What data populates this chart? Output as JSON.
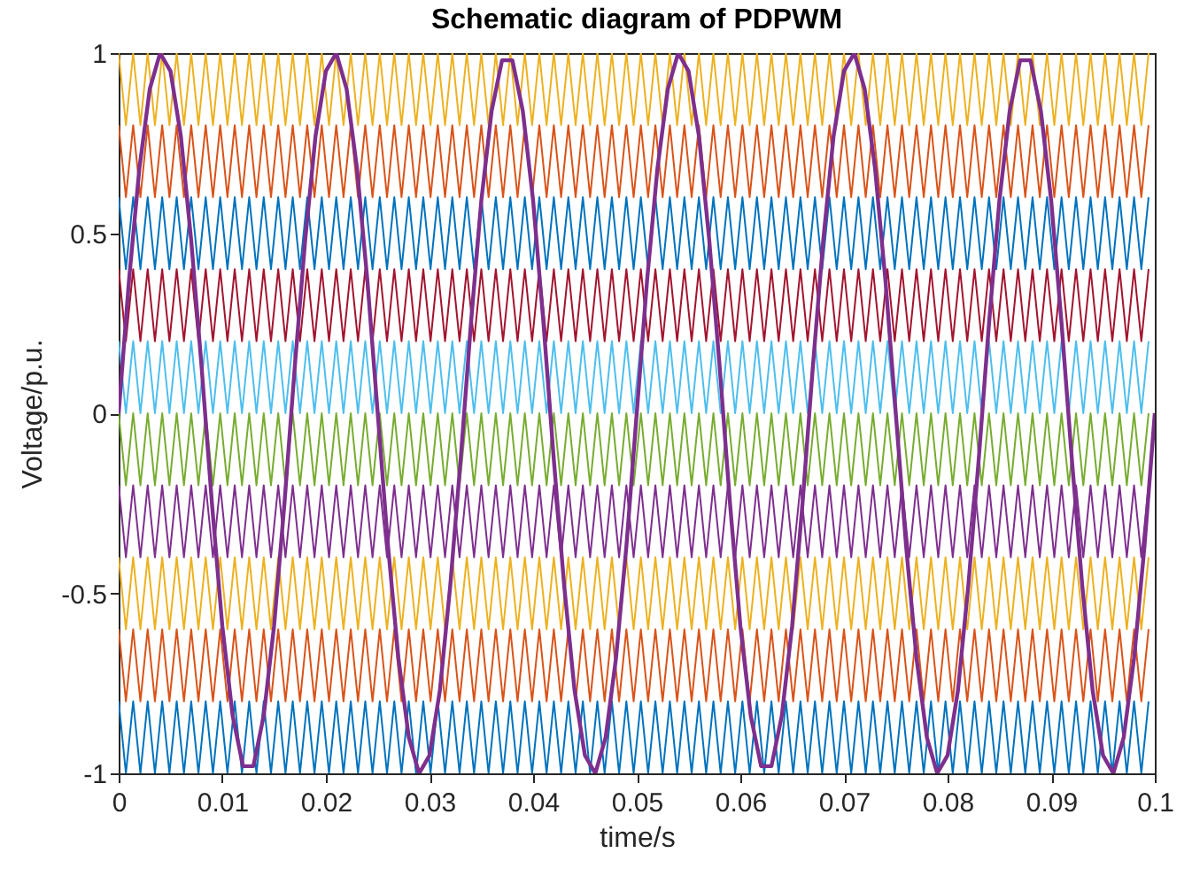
{
  "chart_data": {
    "type": "line",
    "title": "Schematic diagram of PDPWM",
    "xlabel": "time/s",
    "ylabel": "Voltage/p.u.",
    "xlim": [
      0,
      0.1
    ],
    "xticks": [
      0,
      0.01,
      0.02,
      0.03,
      0.04,
      0.05,
      0.06,
      0.07,
      0.08,
      0.09,
      0.1
    ],
    "ylim": [
      -1,
      1
    ],
    "yticks": [
      -1,
      -0.5,
      0,
      0.5,
      1
    ],
    "grid": false,
    "x": [
      0,
      0.0007,
      0.0014,
      0.0021,
      0.0028,
      0.0035,
      0.0042,
      0.0049,
      0.0056,
      0.0063,
      0.007,
      0.0077,
      0.0084,
      0.0091,
      0.0098,
      0.0105,
      0.0112,
      0.0119,
      0.0126,
      0.0133,
      0.014,
      0.0147,
      0.0154,
      0.0161,
      0.0168,
      0.0175,
      0.0182,
      0.0189,
      0.0196,
      0.0203,
      0.021,
      0.0217,
      0.0224,
      0.0231,
      0.0238,
      0.0245,
      0.0252,
      0.0259,
      0.0266,
      0.0273,
      0.028,
      0.0287,
      0.0294,
      0.0301,
      0.0308,
      0.0315,
      0.0322,
      0.0329,
      0.0336,
      0.0343,
      0.035,
      0.0357,
      0.0364,
      0.0371,
      0.0378,
      0.0385,
      0.0392,
      0.0399,
      0.0406,
      0.0413,
      0.042,
      0.0427,
      0.0434,
      0.0441,
      0.0448,
      0.0455,
      0.0462,
      0.0469,
      0.0476,
      0.0483,
      0.049,
      0.0497,
      0.0504,
      0.0511,
      0.0518,
      0.0525,
      0.0532,
      0.0539,
      0.0546,
      0.0553,
      0.056,
      0.0567,
      0.0574,
      0.0581,
      0.0588,
      0.0595,
      0.0602,
      0.0609,
      0.0616,
      0.0623,
      0.063,
      0.0637,
      0.0644,
      0.0651,
      0.0658,
      0.0665,
      0.0672,
      0.0679,
      0.0686,
      0.0693,
      0.07,
      0.0707,
      0.0714,
      0.0721,
      0.0728,
      0.0735,
      0.0742,
      0.0749,
      0.0756,
      0.0763,
      0.077,
      0.0777,
      0.0784,
      0.0791,
      0.0798,
      0.0805,
      0.0812,
      0.0819,
      0.0826,
      0.0833,
      0.084,
      0.0847,
      0.0854,
      0.0861,
      0.0868,
      0.0875,
      0.0882,
      0.0889,
      0.0896,
      0.0903,
      0.091,
      0.0917,
      0.0924,
      0.0931,
      0.0938,
      0.0945,
      0.0952,
      0.0959,
      0.0966,
      0.0973,
      0.098,
      0.0987,
      0.0994
    ],
    "series": [
      {
        "color": "#0072bd",
        "values": [
          -0.8,
          -1,
          -0.8,
          -1,
          -0.8,
          -1,
          -0.8,
          -1,
          -0.8,
          -1,
          -0.8,
          -1,
          -0.8,
          -1,
          -0.8,
          -1,
          -0.8,
          -1,
          -0.8,
          -1,
          -0.8,
          -1,
          -0.8,
          -1,
          -0.8,
          -1,
          -0.8,
          -1,
          -0.8,
          -1,
          -0.8,
          -1,
          -0.8,
          -1,
          -0.8,
          -1,
          -0.8,
          -1,
          -0.8,
          -1,
          -0.8,
          -1,
          -0.8,
          -1,
          -0.8,
          -1,
          -0.8,
          -1,
          -0.8,
          -1,
          -0.8,
          -1,
          -0.8,
          -1,
          -0.8,
          -1,
          -0.8,
          -1,
          -0.8,
          -1,
          -0.8,
          -1,
          -0.8,
          -1,
          -0.8,
          -1,
          -0.8,
          -1,
          -0.8,
          -1,
          -0.8,
          -1,
          -0.8,
          -1,
          -0.8,
          -1,
          -0.8,
          -1,
          -0.8,
          -1,
          -0.8,
          -1,
          -0.8,
          -1,
          -0.8,
          -1,
          -0.8,
          -1,
          -0.8,
          -1,
          -0.8,
          -1,
          -0.8,
          -1,
          -0.8,
          -1,
          -0.8,
          -1,
          -0.8,
          -1,
          -0.8,
          -1,
          -0.8,
          -1,
          -0.8,
          -1,
          -0.8,
          -1,
          -0.8,
          -1,
          -0.8,
          -1,
          -0.8,
          -1,
          -0.8,
          -1,
          -0.8,
          -1,
          -0.8,
          -1,
          -0.8,
          -1,
          -0.8,
          -1,
          -0.8,
          -1,
          -0.8,
          -1,
          -0.8,
          -1,
          -0.8,
          -1,
          -0.8,
          -1,
          -0.8,
          -1,
          -0.8,
          -1,
          -0.8,
          -1,
          -0.8,
          -1,
          -0.8
        ]
      },
      {
        "color": "#d95319",
        "values": [
          -0.6,
          -0.8,
          -0.6,
          -0.8,
          -0.6,
          -0.8,
          -0.6,
          -0.8,
          -0.6,
          -0.8,
          -0.6,
          -0.8,
          -0.6,
          -0.8,
          -0.6,
          -0.8,
          -0.6,
          -0.8,
          -0.6,
          -0.8,
          -0.6,
          -0.8,
          -0.6,
          -0.8,
          -0.6,
          -0.8,
          -0.6,
          -0.8,
          -0.6,
          -0.8,
          -0.6,
          -0.8,
          -0.6,
          -0.8,
          -0.6,
          -0.8,
          -0.6,
          -0.8,
          -0.6,
          -0.8,
          -0.6,
          -0.8,
          -0.6,
          -0.8,
          -0.6,
          -0.8,
          -0.6,
          -0.8,
          -0.6,
          -0.8,
          -0.6,
          -0.8,
          -0.6,
          -0.8,
          -0.6,
          -0.8,
          -0.6,
          -0.8,
          -0.6,
          -0.8,
          -0.6,
          -0.8,
          -0.6,
          -0.8,
          -0.6,
          -0.8,
          -0.6,
          -0.8,
          -0.6,
          -0.8,
          -0.6,
          -0.8,
          -0.6,
          -0.8,
          -0.6,
          -0.8,
          -0.6,
          -0.8,
          -0.6,
          -0.8,
          -0.6,
          -0.8,
          -0.6,
          -0.8,
          -0.6,
          -0.8,
          -0.6,
          -0.8,
          -0.6,
          -0.8,
          -0.6,
          -0.8,
          -0.6,
          -0.8,
          -0.6,
          -0.8,
          -0.6,
          -0.8,
          -0.6,
          -0.8,
          -0.6,
          -0.8,
          -0.6,
          -0.8,
          -0.6,
          -0.8,
          -0.6,
          -0.8,
          -0.6,
          -0.8,
          -0.6,
          -0.8,
          -0.6,
          -0.8,
          -0.6,
          -0.8,
          -0.6,
          -0.8,
          -0.6,
          -0.8,
          -0.6,
          -0.8,
          -0.6,
          -0.8,
          -0.6,
          -0.8,
          -0.6,
          -0.8,
          -0.6,
          -0.8,
          -0.6,
          -0.8,
          -0.6,
          -0.8,
          -0.6,
          -0.8,
          -0.6,
          -0.8,
          -0.6,
          -0.8,
          -0.6,
          -0.8,
          -0.6
        ]
      },
      {
        "color": "#edb120",
        "values": [
          -0.4,
          -0.6,
          -0.4,
          -0.6,
          -0.4,
          -0.6,
          -0.4,
          -0.6,
          -0.4,
          -0.6,
          -0.4,
          -0.6,
          -0.4,
          -0.6,
          -0.4,
          -0.6,
          -0.4,
          -0.6,
          -0.4,
          -0.6,
          -0.4,
          -0.6,
          -0.4,
          -0.6,
          -0.4,
          -0.6,
          -0.4,
          -0.6,
          -0.4,
          -0.6,
          -0.4,
          -0.6,
          -0.4,
          -0.6,
          -0.4,
          -0.6,
          -0.4,
          -0.6,
          -0.4,
          -0.6,
          -0.4,
          -0.6,
          -0.4,
          -0.6,
          -0.4,
          -0.6,
          -0.4,
          -0.6,
          -0.4,
          -0.6,
          -0.4,
          -0.6,
          -0.4,
          -0.6,
          -0.4,
          -0.6,
          -0.4,
          -0.6,
          -0.4,
          -0.6,
          -0.4,
          -0.6,
          -0.4,
          -0.6,
          -0.4,
          -0.6,
          -0.4,
          -0.6,
          -0.4,
          -0.6,
          -0.4,
          -0.6,
          -0.4,
          -0.6,
          -0.4,
          -0.6,
          -0.4,
          -0.6,
          -0.4,
          -0.6,
          -0.4,
          -0.6,
          -0.4,
          -0.6,
          -0.4,
          -0.6,
          -0.4,
          -0.6,
          -0.4,
          -0.6,
          -0.4,
          -0.6,
          -0.4,
          -0.6,
          -0.4,
          -0.6,
          -0.4,
          -0.6,
          -0.4,
          -0.6,
          -0.4,
          -0.6,
          -0.4,
          -0.6,
          -0.4,
          -0.6,
          -0.4,
          -0.6,
          -0.4,
          -0.6,
          -0.4,
          -0.6,
          -0.4,
          -0.6,
          -0.4,
          -0.6,
          -0.4,
          -0.6,
          -0.4,
          -0.6,
          -0.4,
          -0.6,
          -0.4,
          -0.6,
          -0.4,
          -0.6,
          -0.4,
          -0.6,
          -0.4,
          -0.6,
          -0.4,
          -0.6,
          -0.4,
          -0.6,
          -0.4,
          -0.6,
          -0.4,
          -0.6,
          -0.4,
          -0.6,
          -0.4,
          -0.6,
          -0.4
        ]
      },
      {
        "color": "#7e2f8e",
        "values": [
          -0.2,
          -0.4,
          -0.2,
          -0.4,
          -0.2,
          -0.4,
          -0.2,
          -0.4,
          -0.2,
          -0.4,
          -0.2,
          -0.4,
          -0.2,
          -0.4,
          -0.2,
          -0.4,
          -0.2,
          -0.4,
          -0.2,
          -0.4,
          -0.2,
          -0.4,
          -0.2,
          -0.4,
          -0.2,
          -0.4,
          -0.2,
          -0.4,
          -0.2,
          -0.4,
          -0.2,
          -0.4,
          -0.2,
          -0.4,
          -0.2,
          -0.4,
          -0.2,
          -0.4,
          -0.2,
          -0.4,
          -0.2,
          -0.4,
          -0.2,
          -0.4,
          -0.2,
          -0.4,
          -0.2,
          -0.4,
          -0.2,
          -0.4,
          -0.2,
          -0.4,
          -0.2,
          -0.4,
          -0.2,
          -0.4,
          -0.2,
          -0.4,
          -0.2,
          -0.4,
          -0.2,
          -0.4,
          -0.2,
          -0.4,
          -0.2,
          -0.4,
          -0.2,
          -0.4,
          -0.2,
          -0.4,
          -0.2,
          -0.4,
          -0.2,
          -0.4,
          -0.2,
          -0.4,
          -0.2,
          -0.4,
          -0.2,
          -0.4,
          -0.2,
          -0.4,
          -0.2,
          -0.4,
          -0.2,
          -0.4,
          -0.2,
          -0.4,
          -0.2,
          -0.4,
          -0.2,
          -0.4,
          -0.2,
          -0.4,
          -0.2,
          -0.4,
          -0.2,
          -0.4,
          -0.2,
          -0.4,
          -0.2,
          -0.4,
          -0.2,
          -0.4,
          -0.2,
          -0.4,
          -0.2,
          -0.4,
          -0.2,
          -0.4,
          -0.2,
          -0.4,
          -0.2,
          -0.4,
          -0.2,
          -0.4,
          -0.2,
          -0.4,
          -0.2,
          -0.4,
          -0.2,
          -0.4,
          -0.2,
          -0.4,
          -0.2,
          -0.4,
          -0.2,
          -0.4,
          -0.2,
          -0.4,
          -0.2,
          -0.4,
          -0.2,
          -0.4,
          -0.2,
          -0.4,
          -0.2,
          -0.4,
          -0.2,
          -0.4,
          -0.2,
          -0.4,
          -0.2
        ]
      },
      {
        "color": "#77ac30",
        "values": [
          0,
          -0.2,
          0,
          -0.2,
          0,
          -0.2,
          0,
          -0.2,
          0,
          -0.2,
          0,
          -0.2,
          0,
          -0.2,
          0,
          -0.2,
          0,
          -0.2,
          0,
          -0.2,
          0,
          -0.2,
          0,
          -0.2,
          0,
          -0.2,
          0,
          -0.2,
          0,
          -0.2,
          0,
          -0.2,
          0,
          -0.2,
          0,
          -0.2,
          0,
          -0.2,
          0,
          -0.2,
          0,
          -0.2,
          0,
          -0.2,
          0,
          -0.2,
          0,
          -0.2,
          0,
          -0.2,
          0,
          -0.2,
          0,
          -0.2,
          0,
          -0.2,
          0,
          -0.2,
          0,
          -0.2,
          0,
          -0.2,
          0,
          -0.2,
          0,
          -0.2,
          0,
          -0.2,
          0,
          -0.2,
          0,
          -0.2,
          0,
          -0.2,
          0,
          -0.2,
          0,
          -0.2,
          0,
          -0.2,
          0,
          -0.2,
          0,
          -0.2,
          0,
          -0.2,
          0,
          -0.2,
          0,
          -0.2,
          0,
          -0.2,
          0,
          -0.2,
          0,
          -0.2,
          0,
          -0.2,
          0,
          -0.2,
          0,
          -0.2,
          0,
          -0.2,
          0,
          -0.2,
          0,
          -0.2,
          0,
          -0.2,
          0,
          -0.2,
          0,
          -0.2,
          0,
          -0.2,
          0,
          -0.2,
          0,
          -0.2,
          0,
          -0.2,
          0,
          -0.2,
          0,
          -0.2,
          0,
          -0.2,
          0,
          -0.2,
          0,
          -0.2,
          0,
          -0.2,
          0,
          -0.2,
          0,
          -0.2,
          0,
          -0.2,
          0,
          -0.2,
          0
        ]
      },
      {
        "color": "#4dbeee",
        "values": [
          0.2,
          0,
          0.2,
          0,
          0.2,
          0,
          0.2,
          0,
          0.2,
          0,
          0.2,
          0,
          0.2,
          0,
          0.2,
          0,
          0.2,
          0,
          0.2,
          0,
          0.2,
          0,
          0.2,
          0,
          0.2,
          0,
          0.2,
          0,
          0.2,
          0,
          0.2,
          0,
          0.2,
          0,
          0.2,
          0,
          0.2,
          0,
          0.2,
          0,
          0.2,
          0,
          0.2,
          0,
          0.2,
          0,
          0.2,
          0,
          0.2,
          0,
          0.2,
          0,
          0.2,
          0,
          0.2,
          0,
          0.2,
          0,
          0.2,
          0,
          0.2,
          0,
          0.2,
          0,
          0.2,
          0,
          0.2,
          0,
          0.2,
          0,
          0.2,
          0,
          0.2,
          0,
          0.2,
          0,
          0.2,
          0,
          0.2,
          0,
          0.2,
          0,
          0.2,
          0,
          0.2,
          0,
          0.2,
          0,
          0.2,
          0,
          0.2,
          0,
          0.2,
          0,
          0.2,
          0,
          0.2,
          0,
          0.2,
          0,
          0.2,
          0,
          0.2,
          0,
          0.2,
          0,
          0.2,
          0,
          0.2,
          0,
          0.2,
          0,
          0.2,
          0,
          0.2,
          0,
          0.2,
          0,
          0.2,
          0,
          0.2,
          0,
          0.2,
          0,
          0.2,
          0,
          0.2,
          0,
          0.2,
          0,
          0.2,
          0,
          0.2,
          0,
          0.2,
          0,
          0.2,
          0,
          0.2,
          0,
          0.2,
          0,
          0.2
        ]
      },
      {
        "color": "#a2142f",
        "values": [
          0.4,
          0.2,
          0.4,
          0.2,
          0.4,
          0.2,
          0.4,
          0.2,
          0.4,
          0.2,
          0.4,
          0.2,
          0.4,
          0.2,
          0.4,
          0.2,
          0.4,
          0.2,
          0.4,
          0.2,
          0.4,
          0.2,
          0.4,
          0.2,
          0.4,
          0.2,
          0.4,
          0.2,
          0.4,
          0.2,
          0.4,
          0.2,
          0.4,
          0.2,
          0.4,
          0.2,
          0.4,
          0.2,
          0.4,
          0.2,
          0.4,
          0.2,
          0.4,
          0.2,
          0.4,
          0.2,
          0.4,
          0.2,
          0.4,
          0.2,
          0.4,
          0.2,
          0.4,
          0.2,
          0.4,
          0.2,
          0.4,
          0.2,
          0.4,
          0.2,
          0.4,
          0.2,
          0.4,
          0.2,
          0.4,
          0.2,
          0.4,
          0.2,
          0.4,
          0.2,
          0.4,
          0.2,
          0.4,
          0.2,
          0.4,
          0.2,
          0.4,
          0.2,
          0.4,
          0.2,
          0.4,
          0.2,
          0.4,
          0.2,
          0.4,
          0.2,
          0.4,
          0.2,
          0.4,
          0.2,
          0.4,
          0.2,
          0.4,
          0.2,
          0.4,
          0.2,
          0.4,
          0.2,
          0.4,
          0.2,
          0.4,
          0.2,
          0.4,
          0.2,
          0.4,
          0.2,
          0.4,
          0.2,
          0.4,
          0.2,
          0.4,
          0.2,
          0.4,
          0.2,
          0.4,
          0.2,
          0.4,
          0.2,
          0.4,
          0.2,
          0.4,
          0.2,
          0.4,
          0.2,
          0.4,
          0.2,
          0.4,
          0.2,
          0.4,
          0.2,
          0.4,
          0.2,
          0.4,
          0.2,
          0.4,
          0.2,
          0.4,
          0.2,
          0.4,
          0.2,
          0.4,
          0.2,
          0.4
        ]
      },
      {
        "color": "#0072bd",
        "values": [
          0.6,
          0.4,
          0.6,
          0.4,
          0.6,
          0.4,
          0.6,
          0.4,
          0.6,
          0.4,
          0.6,
          0.4,
          0.6,
          0.4,
          0.6,
          0.4,
          0.6,
          0.4,
          0.6,
          0.4,
          0.6,
          0.4,
          0.6,
          0.4,
          0.6,
          0.4,
          0.6,
          0.4,
          0.6,
          0.4,
          0.6,
          0.4,
          0.6,
          0.4,
          0.6,
          0.4,
          0.6,
          0.4,
          0.6,
          0.4,
          0.6,
          0.4,
          0.6,
          0.4,
          0.6,
          0.4,
          0.6,
          0.4,
          0.6,
          0.4,
          0.6,
          0.4,
          0.6,
          0.4,
          0.6,
          0.4,
          0.6,
          0.4,
          0.6,
          0.4,
          0.6,
          0.4,
          0.6,
          0.4,
          0.6,
          0.4,
          0.6,
          0.4,
          0.6,
          0.4,
          0.6,
          0.4,
          0.6,
          0.4,
          0.6,
          0.4,
          0.6,
          0.4,
          0.6,
          0.4,
          0.6,
          0.4,
          0.6,
          0.4,
          0.6,
          0.4,
          0.6,
          0.4,
          0.6,
          0.4,
          0.6,
          0.4,
          0.6,
          0.4,
          0.6,
          0.4,
          0.6,
          0.4,
          0.6,
          0.4,
          0.6,
          0.4,
          0.6,
          0.4,
          0.6,
          0.4,
          0.6,
          0.4,
          0.6,
          0.4,
          0.6,
          0.4,
          0.6,
          0.4,
          0.6,
          0.4,
          0.6,
          0.4,
          0.6,
          0.4,
          0.6,
          0.4,
          0.6,
          0.4,
          0.6,
          0.4,
          0.6,
          0.4,
          0.6,
          0.4,
          0.6,
          0.4,
          0.6,
          0.4,
          0.6,
          0.4,
          0.6,
          0.4,
          0.6,
          0.4,
          0.6,
          0.4,
          0.6
        ]
      },
      {
        "color": "#d95319",
        "values": [
          0.8,
          0.6,
          0.8,
          0.6,
          0.8,
          0.6,
          0.8,
          0.6,
          0.8,
          0.6,
          0.8,
          0.6,
          0.8,
          0.6,
          0.8,
          0.6,
          0.8,
          0.6,
          0.8,
          0.6,
          0.8,
          0.6,
          0.8,
          0.6,
          0.8,
          0.6,
          0.8,
          0.6,
          0.8,
          0.6,
          0.8,
          0.6,
          0.8,
          0.6,
          0.8,
          0.6,
          0.8,
          0.6,
          0.8,
          0.6,
          0.8,
          0.6,
          0.8,
          0.6,
          0.8,
          0.6,
          0.8,
          0.6,
          0.8,
          0.6,
          0.8,
          0.6,
          0.8,
          0.6,
          0.8,
          0.6,
          0.8,
          0.6,
          0.8,
          0.6,
          0.8,
          0.6,
          0.8,
          0.6,
          0.8,
          0.6,
          0.8,
          0.6,
          0.8,
          0.6,
          0.8,
          0.6,
          0.8,
          0.6,
          0.8,
          0.6,
          0.8,
          0.6,
          0.8,
          0.6,
          0.8,
          0.6,
          0.8,
          0.6,
          0.8,
          0.6,
          0.8,
          0.6,
          0.8,
          0.6,
          0.8,
          0.6,
          0.8,
          0.6,
          0.8,
          0.6,
          0.8,
          0.6,
          0.8,
          0.6,
          0.8,
          0.6,
          0.8,
          0.6,
          0.8,
          0.6,
          0.8,
          0.6,
          0.8,
          0.6,
          0.8,
          0.6,
          0.8,
          0.6,
          0.8,
          0.6,
          0.8,
          0.6,
          0.8,
          0.6,
          0.8,
          0.6,
          0.8,
          0.6,
          0.8,
          0.6,
          0.8,
          0.6,
          0.8,
          0.6,
          0.8,
          0.6,
          0.8,
          0.6,
          0.8,
          0.6,
          0.8,
          0.6,
          0.8,
          0.6,
          0.8,
          0.6,
          0.8
        ]
      },
      {
        "color": "#edb120",
        "values": [
          1,
          0.8,
          1,
          0.8,
          1,
          0.8,
          1,
          0.8,
          1,
          0.8,
          1,
          0.8,
          1,
          0.8,
          1,
          0.8,
          1,
          0.8,
          1,
          0.8,
          1,
          0.8,
          1,
          0.8,
          1,
          0.8,
          1,
          0.8,
          1,
          0.8,
          1,
          0.8,
          1,
          0.8,
          1,
          0.8,
          1,
          0.8,
          1,
          0.8,
          1,
          0.8,
          1,
          0.8,
          1,
          0.8,
          1,
          0.8,
          1,
          0.8,
          1,
          0.8,
          1,
          0.8,
          1,
          0.8,
          1,
          0.8,
          1,
          0.8,
          1,
          0.8,
          1,
          0.8,
          1,
          0.8,
          1,
          0.8,
          1,
          0.8,
          1,
          0.8,
          1,
          0.8,
          1,
          0.8,
          1,
          0.8,
          1,
          0.8,
          1,
          0.8,
          1,
          0.8,
          1,
          0.8,
          1,
          0.8,
          1,
          0.8,
          1,
          0.8,
          1,
          0.8,
          1,
          0.8,
          1,
          0.8,
          1,
          0.8,
          1,
          0.8,
          1,
          0.8,
          1,
          0.8,
          1,
          0.8,
          1,
          0.8,
          1,
          0.8,
          1,
          0.8,
          1,
          0.8,
          1,
          0.8,
          1,
          0.8,
          1,
          0.8,
          1,
          0.8,
          1,
          0.8,
          1,
          0.8,
          1,
          0.8,
          1,
          0.8,
          1,
          0.8,
          1,
          0.8,
          1,
          0.8,
          1,
          0.8,
          1,
          0.8,
          1
        ]
      },
      {
        "color": "#7e2f8e",
        "x": [
          0,
          0.001,
          0.002,
          0.003,
          0.004,
          0.005,
          0.006,
          0.007,
          0.008,
          0.009,
          0.01,
          0.011,
          0.012,
          0.013,
          0.014,
          0.015,
          0.016,
          0.017,
          0.018,
          0.019,
          0.02,
          0.021,
          0.022,
          0.023,
          0.024,
          0.025,
          0.026,
          0.027,
          0.028,
          0.029,
          0.03,
          0.031,
          0.032,
          0.033,
          0.034,
          0.035,
          0.036,
          0.037,
          0.038,
          0.039,
          0.04,
          0.041,
          0.042,
          0.043,
          0.044,
          0.045,
          0.046,
          0.047,
          0.048,
          0.049,
          0.05,
          0.051,
          0.052,
          0.053,
          0.054,
          0.055,
          0.056,
          0.057,
          0.058,
          0.059,
          0.06,
          0.061,
          0.062,
          0.063,
          0.064,
          0.065,
          0.066,
          0.067,
          0.068,
          0.069,
          0.07,
          0.071,
          0.072,
          0.073,
          0.074,
          0.075,
          0.076,
          0.077,
          0.078,
          0.079,
          0.08,
          0.081,
          0.082,
          0.083,
          0.084,
          0.085,
          0.086,
          0.087,
          0.088,
          0.089,
          0.09,
          0.091,
          0.092,
          0.093,
          0.094,
          0.095,
          0.096,
          0.097,
          0.098,
          0.099,
          0.1
        ],
        "values": [
          0,
          0.37,
          0.68,
          0.9,
          1,
          0.95,
          0.77,
          0.48,
          0.13,
          -0.25,
          -0.59,
          -0.84,
          -0.98,
          -0.98,
          -0.84,
          -0.59,
          -0.25,
          0.13,
          0.48,
          0.77,
          0.95,
          1,
          0.9,
          0.68,
          0.37,
          0,
          -0.37,
          -0.68,
          -0.9,
          -1,
          -0.95,
          -0.77,
          -0.48,
          -0.13,
          0.25,
          0.59,
          0.84,
          0.98,
          0.98,
          0.84,
          0.59,
          0.25,
          -0.13,
          -0.48,
          -0.77,
          -0.95,
          -1,
          -0.9,
          -0.68,
          -0.37,
          0,
          0.37,
          0.68,
          0.9,
          1,
          0.95,
          0.77,
          0.48,
          0.13,
          -0.25,
          -0.59,
          -0.84,
          -0.98,
          -0.98,
          -0.84,
          -0.59,
          -0.25,
          0.13,
          0.48,
          0.77,
          0.95,
          1,
          0.9,
          0.68,
          0.37,
          0,
          -0.37,
          -0.68,
          -0.9,
          -1,
          -0.95,
          -0.77,
          -0.48,
          -0.13,
          0.25,
          0.59,
          0.84,
          0.98,
          0.98,
          0.84,
          0.59,
          0.25,
          -0.13,
          -0.48,
          -0.77,
          -0.95,
          -1,
          -0.9,
          -0.68,
          -0.37,
          0
        ]
      }
    ]
  }
}
